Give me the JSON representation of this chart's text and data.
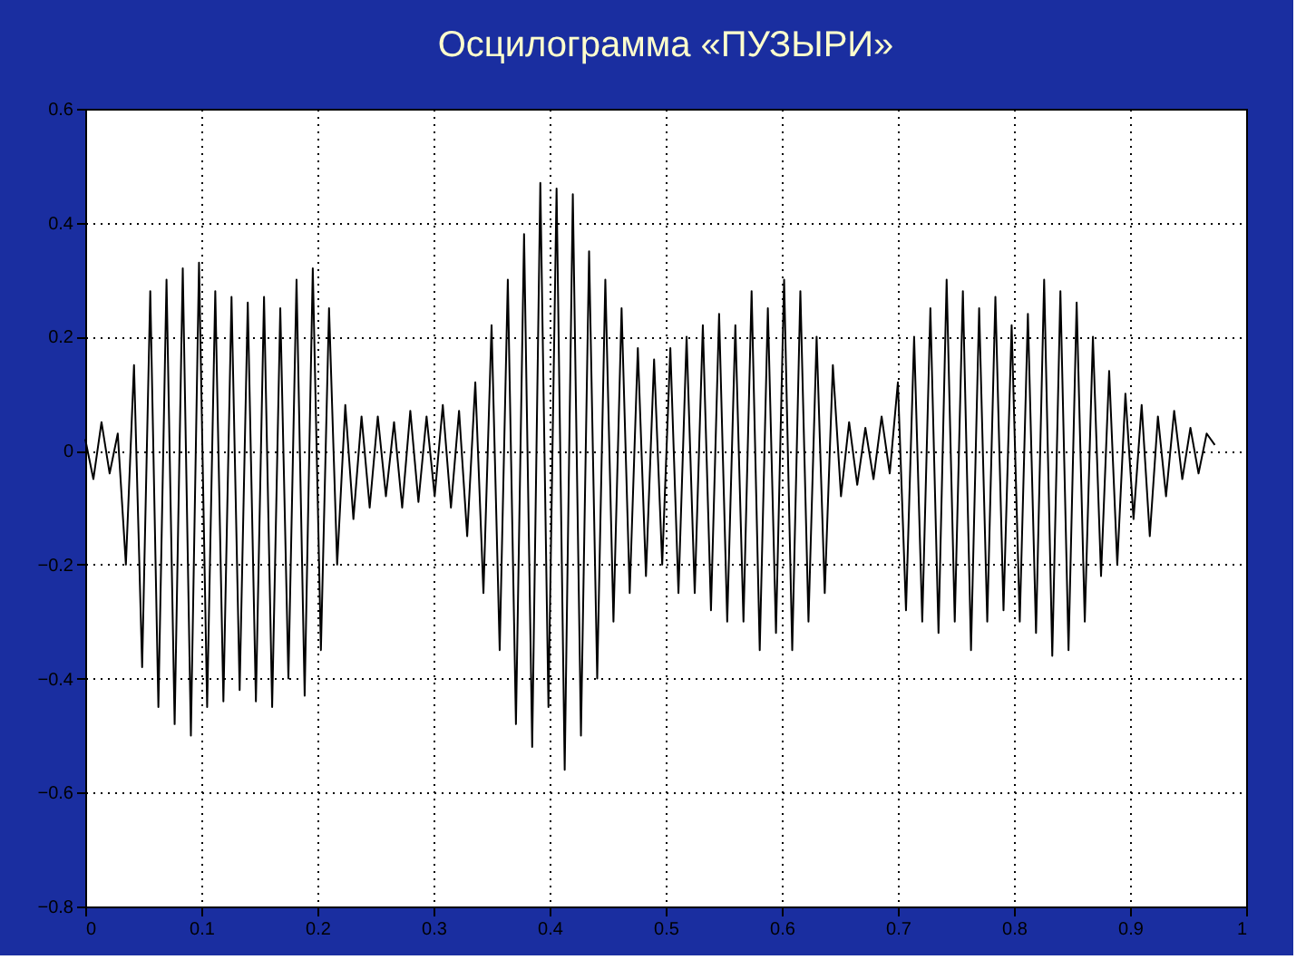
{
  "chart_data": {
    "type": "line",
    "title": "Осцилограмма «ПУЗЫРИ»",
    "x": [
      0,
      0.007,
      0.014,
      0.021,
      0.028,
      0.035,
      0.042,
      0.049,
      0.056,
      0.063,
      0.07,
      0.077,
      0.084,
      0.091,
      0.098,
      0.105,
      0.112,
      0.119,
      0.126,
      0.133,
      0.14,
      0.147,
      0.154,
      0.161,
      0.168,
      0.175,
      0.182,
      0.189,
      0.196,
      0.203,
      0.21,
      0.217,
      0.224,
      0.231,
      0.238,
      0.245,
      0.252,
      0.259,
      0.266,
      0.273,
      0.28,
      0.287,
      0.294,
      0.301,
      0.308,
      0.315,
      0.322,
      0.329,
      0.336,
      0.343,
      0.35,
      0.357,
      0.364,
      0.371,
      0.378,
      0.385,
      0.392,
      0.399,
      0.406,
      0.413,
      0.42,
      0.427,
      0.434,
      0.441,
      0.448,
      0.455,
      0.462,
      0.469,
      0.476,
      0.483,
      0.49,
      0.497,
      0.504,
      0.511,
      0.518,
      0.525,
      0.532,
      0.539,
      0.546,
      0.553,
      0.56,
      0.567,
      0.574,
      0.581,
      0.588,
      0.595,
      0.602,
      0.609,
      0.616,
      0.623,
      0.63,
      0.637,
      0.644,
      0.651,
      0.658,
      0.665,
      0.672,
      0.679,
      0.686,
      0.693,
      0.7,
      0.707,
      0.714,
      0.721,
      0.728,
      0.735,
      0.742,
      0.749,
      0.756,
      0.763,
      0.77,
      0.777,
      0.784,
      0.791,
      0.798,
      0.805,
      0.812,
      0.819,
      0.826,
      0.833,
      0.84,
      0.847,
      0.854,
      0.861,
      0.868,
      0.875,
      0.882,
      0.889,
      0.896,
      0.903,
      0.91,
      0.917,
      0.924,
      0.931,
      0.938,
      0.945,
      0.952,
      0.959,
      0.966,
      0.973
    ],
    "series": [
      {
        "color": "#000000",
        "values": [
          0.02,
          -0.05,
          0.05,
          -0.04,
          0.03,
          -0.2,
          0.15,
          -0.38,
          0.28,
          -0.45,
          0.3,
          -0.48,
          0.32,
          -0.5,
          0.33,
          -0.45,
          0.28,
          -0.44,
          0.27,
          -0.42,
          0.26,
          -0.44,
          0.27,
          -0.45,
          0.25,
          -0.4,
          0.3,
          -0.43,
          0.32,
          -0.35,
          0.25,
          -0.2,
          0.08,
          -0.12,
          0.06,
          -0.1,
          0.06,
          -0.08,
          0.05,
          -0.1,
          0.07,
          -0.09,
          0.06,
          -0.08,
          0.08,
          -0.1,
          0.07,
          -0.15,
          0.12,
          -0.25,
          0.22,
          -0.35,
          0.3,
          -0.48,
          0.38,
          -0.52,
          0.47,
          -0.45,
          0.46,
          -0.56,
          0.45,
          -0.5,
          0.35,
          -0.4,
          0.3,
          -0.3,
          0.25,
          -0.25,
          0.18,
          -0.22,
          0.16,
          -0.2,
          0.18,
          -0.25,
          0.2,
          -0.25,
          0.22,
          -0.28,
          0.24,
          -0.3,
          0.22,
          -0.3,
          0.28,
          -0.35,
          0.25,
          -0.32,
          0.3,
          -0.35,
          0.28,
          -0.3,
          0.2,
          -0.25,
          0.15,
          -0.08,
          0.05,
          -0.06,
          0.04,
          -0.05,
          0.06,
          -0.04,
          0.12,
          -0.28,
          0.2,
          -0.3,
          0.25,
          -0.32,
          0.3,
          -0.3,
          0.28,
          -0.35,
          0.25,
          -0.3,
          0.27,
          -0.28,
          0.22,
          -0.3,
          0.24,
          -0.32,
          0.3,
          -0.36,
          0.28,
          -0.35,
          0.26,
          -0.3,
          0.2,
          -0.22,
          0.14,
          -0.2,
          0.1,
          -0.12,
          0.08,
          -0.15,
          0.06,
          -0.08,
          0.07,
          -0.05,
          0.04,
          -0.04,
          0.03,
          0.01
        ]
      }
    ],
    "xlim": [
      0,
      1
    ],
    "xticks": [
      0,
      0.1,
      0.2,
      0.3,
      0.4,
      0.5,
      0.6,
      0.7,
      0.8,
      0.9,
      1
    ],
    "ylim": [
      -0.8,
      0.6
    ],
    "yticks": [
      -0.8,
      -0.6,
      -0.4,
      -0.2,
      0,
      0.2,
      0.4,
      0.6
    ],
    "grid": true,
    "marker": "none",
    "line_style": "solid"
  }
}
